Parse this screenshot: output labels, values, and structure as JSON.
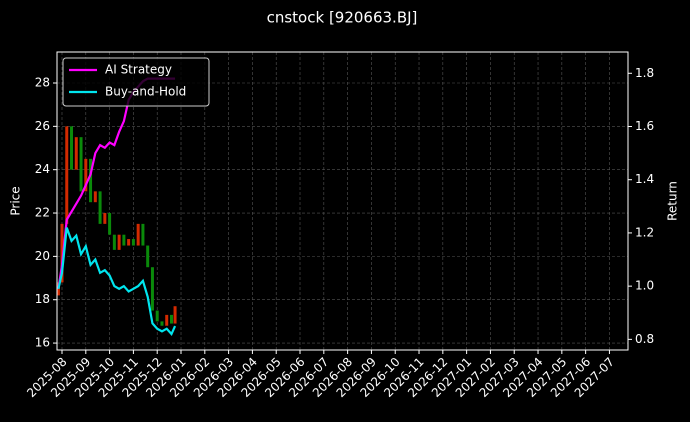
{
  "chart_data": {
    "type": "candlestick",
    "title": "cnstock [920663.BJ]",
    "ylabel": "Price",
    "y2label": "Return",
    "x": [
      -0.15,
      0,
      0.2,
      0.4,
      0.6,
      0.8,
      1.0,
      1.2,
      1.4,
      1.6,
      1.8,
      2.0,
      2.2,
      2.4,
      2.6,
      2.8,
      3.0,
      3.2,
      3.4,
      3.6,
      3.8,
      4.0,
      4.2,
      4.4,
      4.6,
      4.75
    ],
    "open": [
      18.2,
      18.8,
      21.5,
      26.0,
      24.0,
      25.5,
      23.0,
      24.5,
      22.5,
      23.0,
      21.5,
      22.0,
      21.0,
      20.3,
      21.0,
      20.5,
      20.8,
      20.5,
      21.5,
      20.5,
      19.5,
      17.5,
      17.0,
      16.8,
      17.3,
      16.9
    ],
    "close": [
      18.8,
      21.5,
      26.0,
      24.0,
      25.5,
      23.0,
      24.5,
      22.5,
      23.0,
      21.5,
      22.0,
      21.0,
      20.3,
      21.0,
      20.5,
      20.8,
      20.5,
      21.5,
      20.5,
      19.5,
      17.5,
      17.0,
      16.8,
      17.3,
      16.9,
      17.7
    ],
    "up_color": "#d42a00",
    "down_color": "#0a8a0a",
    "series": [
      {
        "name": "AI Strategy",
        "color": "#ff00ff",
        "axis": "y2",
        "values": [
          0.99,
          1.08,
          1.25,
          1.28,
          1.31,
          1.34,
          1.38,
          1.42,
          1.5,
          1.53,
          1.52,
          1.54,
          1.53,
          1.58,
          1.62,
          1.7,
          1.73,
          1.75,
          1.77,
          1.78,
          1.78,
          1.78,
          1.78,
          1.78,
          1.78,
          1.78
        ]
      },
      {
        "name": "Buy-and-Hold",
        "color": "#00e5ee",
        "axis": "y2",
        "values": [
          0.99,
          1.05,
          1.22,
          1.17,
          1.19,
          1.12,
          1.15,
          1.08,
          1.1,
          1.05,
          1.06,
          1.04,
          1.0,
          0.99,
          1.0,
          0.98,
          0.99,
          1.0,
          1.02,
          0.96,
          0.86,
          0.84,
          0.83,
          0.84,
          0.82,
          0.85
        ]
      }
    ],
    "xlim": [
      -0.21,
      23.78
    ],
    "xticks": [
      {
        "value": 0,
        "label": "2025-08"
      },
      {
        "value": 1,
        "label": "2025-09"
      },
      {
        "value": 2,
        "label": "2025-10"
      },
      {
        "value": 3,
        "label": "2025-11"
      },
      {
        "value": 4,
        "label": "2025-12"
      },
      {
        "value": 5,
        "label": "2026-01"
      },
      {
        "value": 6,
        "label": "2026-02"
      },
      {
        "value": 7,
        "label": "2026-03"
      },
      {
        "value": 8,
        "label": "2026-04"
      },
      {
        "value": 9,
        "label": "2026-05"
      },
      {
        "value": 10,
        "label": "2026-06"
      },
      {
        "value": 11,
        "label": "2026-07"
      },
      {
        "value": 12,
        "label": "2026-08"
      },
      {
        "value": 13,
        "label": "2026-09"
      },
      {
        "value": 14,
        "label": "2026-10"
      },
      {
        "value": 15,
        "label": "2026-11"
      },
      {
        "value": 16,
        "label": "2026-12"
      },
      {
        "value": 17,
        "label": "2027-01"
      },
      {
        "value": 18,
        "label": "2027-02"
      },
      {
        "value": 19,
        "label": "2027-03"
      },
      {
        "value": 20,
        "label": "2027-04"
      },
      {
        "value": 21,
        "label": "2027-05"
      },
      {
        "value": 22,
        "label": "2027-06"
      },
      {
        "value": 23,
        "label": "2027-07"
      }
    ],
    "ylim": [
      15.68,
      29.43
    ],
    "yticks": [
      16,
      18,
      20,
      22,
      24,
      26,
      28
    ],
    "y2lim": [
      0.76,
      1.88
    ],
    "y2ticks": [
      0.8,
      {
        "value": 1,
        "label": "1.0"
      },
      1.2,
      1.4,
      1.6,
      1.8
    ],
    "grid": true,
    "legend": "upper left"
  }
}
